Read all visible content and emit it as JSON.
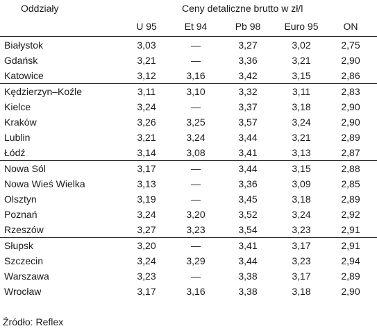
{
  "header": {
    "branch_label": "Oddziały",
    "prices_label": "Ceny detaliczne brutto w zł/l"
  },
  "columns": [
    "U 95",
    "Et 94",
    "Pb 98",
    "Euro 95",
    "ON"
  ],
  "rows": [
    {
      "name": "Białystok",
      "values": [
        "3,03",
        "—",
        "3,27",
        "3,02",
        "2,75"
      ]
    },
    {
      "name": "Gdańsk",
      "values": [
        "3,21",
        "—",
        "3,36",
        "3,21",
        "2,90"
      ]
    },
    {
      "name": "Katowice",
      "values": [
        "3,12",
        "3,16",
        "3,42",
        "3,15",
        "2,86"
      ]
    },
    {
      "name": "Kędzierzyn–Koźle",
      "values": [
        "3,11",
        "3,10",
        "3,32",
        "3,11",
        "2,83"
      ]
    },
    {
      "name": "Kielce",
      "values": [
        "3,24",
        "—",
        "3,37",
        "3,18",
        "2,90"
      ]
    },
    {
      "name": "Kraków",
      "values": [
        "3,26",
        "3,25",
        "3,57",
        "3,24",
        "2,90"
      ]
    },
    {
      "name": "Lublin",
      "values": [
        "3,21",
        "3,24",
        "3,44",
        "3,21",
        "2,89"
      ]
    },
    {
      "name": "Łódź",
      "values": [
        "3,14",
        "3,08",
        "3,41",
        "3,13",
        "2,87"
      ]
    },
    {
      "name": "Nowa Sól",
      "values": [
        "3,17",
        "—",
        "3,44",
        "3,15",
        "2,88"
      ]
    },
    {
      "name": "Nowa Wieś Wielka",
      "values": [
        "3,13",
        "—",
        "3,36",
        "3,09",
        "2,85"
      ]
    },
    {
      "name": "Olsztyn",
      "values": [
        "3,19",
        "—",
        "3,45",
        "3,18",
        "2,89"
      ]
    },
    {
      "name": "Poznań",
      "values": [
        "3,24",
        "3,20",
        "3,52",
        "3,24",
        "2,92"
      ]
    },
    {
      "name": "Rzeszów",
      "values": [
        "3,27",
        "3,23",
        "3,54",
        "3,23",
        "2,91"
      ]
    },
    {
      "name": "Słupsk",
      "values": [
        "3,20",
        "—",
        "3,41",
        "3,17",
        "2,91"
      ]
    },
    {
      "name": "Szczecin",
      "values": [
        "3,24",
        "3,29",
        "3,44",
        "3,23",
        "2,94"
      ]
    },
    {
      "name": "Warszawa",
      "values": [
        "3,23",
        "—",
        "3,38",
        "3,17",
        "2,89"
      ]
    },
    {
      "name": "Wrocław",
      "values": [
        "3,17",
        "3,16",
        "3,38",
        "3,18",
        "2,90"
      ]
    }
  ],
  "source": "Źródło: Reflex"
}
